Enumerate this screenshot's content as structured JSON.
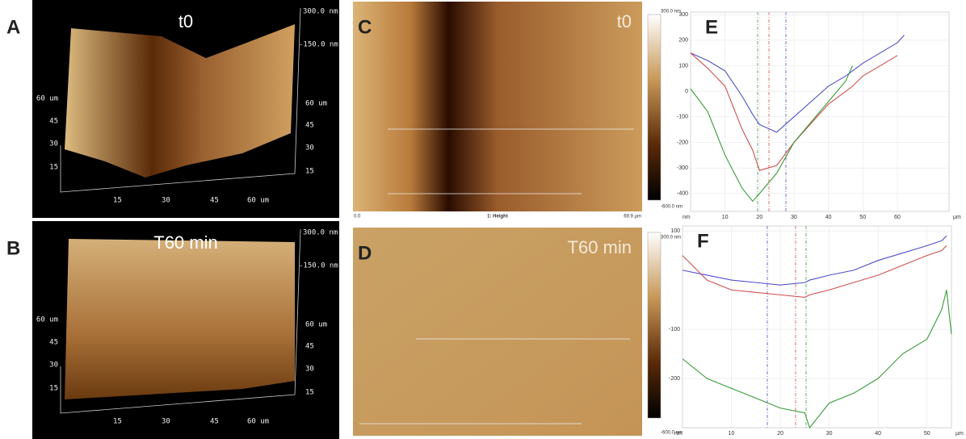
{
  "panels": {
    "A": {
      "label": "A",
      "title": "t0",
      "z_ticks": [
        "300.0 nm",
        "-150.0 nm"
      ],
      "left_ticks": [
        "60 um",
        "45",
        "30",
        "15"
      ],
      "right_ticks": [
        "60 um",
        "45",
        "30",
        "15"
      ],
      "bottom_ticks": [
        "15",
        "30",
        "45",
        "60 um"
      ]
    },
    "B": {
      "label": "B",
      "title": "T60 min",
      "z_ticks": [
        "300.0 nm",
        "-150.0 nm"
      ],
      "left_ticks": [
        "60 um",
        "45",
        "30",
        "15"
      ],
      "right_ticks": [
        "60 um",
        "45",
        "30",
        "15"
      ],
      "bottom_ticks": [
        "15",
        "30",
        "45",
        "60 um"
      ]
    },
    "C": {
      "label": "C",
      "title": "t0",
      "scale_max": "300.0 nm",
      "scale_min": "-600.0 nm",
      "x_start": "0.0",
      "channel": "1: Height",
      "x_end": "69.9 µm"
    },
    "D": {
      "label": "D",
      "title": "T60 min",
      "scale_max": "300.0 nm",
      "scale_min": "-600.0 nm",
      "x_start": "0.0",
      "channel": "1: Height",
      "x_end": "69.9 µm"
    }
  },
  "chart_data": [
    {
      "type": "line",
      "label": "E",
      "y_unit": "nm",
      "x_unit": "µm",
      "grid": true,
      "x": [
        0,
        5,
        10,
        15,
        18,
        20,
        25,
        30,
        40,
        45,
        47,
        50,
        60,
        62
      ],
      "xlim": [
        0,
        75
      ],
      "xticks": [
        10,
        20,
        30,
        40,
        50,
        60
      ],
      "ylim": [
        -470,
        310
      ],
      "yticks": [
        300,
        200,
        100,
        0,
        -100,
        -200,
        -300,
        -400
      ],
      "series": [
        {
          "color": "#5050c8",
          "values": [
            150,
            120,
            80,
            -20,
            -90,
            -130,
            -160,
            -100,
            20,
            60,
            80,
            110,
            190,
            220
          ]
        },
        {
          "color": "#d05050",
          "values": [
            150,
            90,
            20,
            -150,
            -230,
            -310,
            -290,
            -200,
            -50,
            0,
            20,
            60,
            140,
            null
          ]
        },
        {
          "color": "#3a9a3a",
          "values": [
            10,
            -80,
            -250,
            -380,
            -430,
            -400,
            -320,
            -200,
            -40,
            40,
            100,
            null,
            null,
            null
          ]
        }
      ]
    },
    {
      "type": "line",
      "label": "F",
      "y_unit": "nm",
      "x_unit": "µm",
      "grid": true,
      "x": [
        0,
        5,
        10,
        15,
        20,
        25,
        26,
        30,
        35,
        40,
        45,
        50,
        53,
        54,
        55
      ],
      "xlim": [
        0,
        55
      ],
      "xticks": [
        10,
        20,
        30,
        40,
        50
      ],
      "ylim": [
        -300,
        110
      ],
      "yticks": [
        100,
        -100,
        -200
      ],
      "series": [
        {
          "color": "#5050c8",
          "values": [
            20,
            10,
            0,
            -5,
            -10,
            -5,
            0,
            10,
            20,
            40,
            55,
            70,
            80,
            90,
            null
          ]
        },
        {
          "color": "#d05050",
          "values": [
            50,
            0,
            -20,
            -25,
            -30,
            -35,
            -30,
            -20,
            -5,
            10,
            30,
            50,
            60,
            70,
            null
          ]
        },
        {
          "color": "#3a9a3a",
          "values": [
            -160,
            -200,
            -220,
            -240,
            -260,
            -270,
            -300,
            -250,
            -230,
            -200,
            -150,
            -120,
            -60,
            -20,
            -110
          ]
        }
      ]
    }
  ]
}
